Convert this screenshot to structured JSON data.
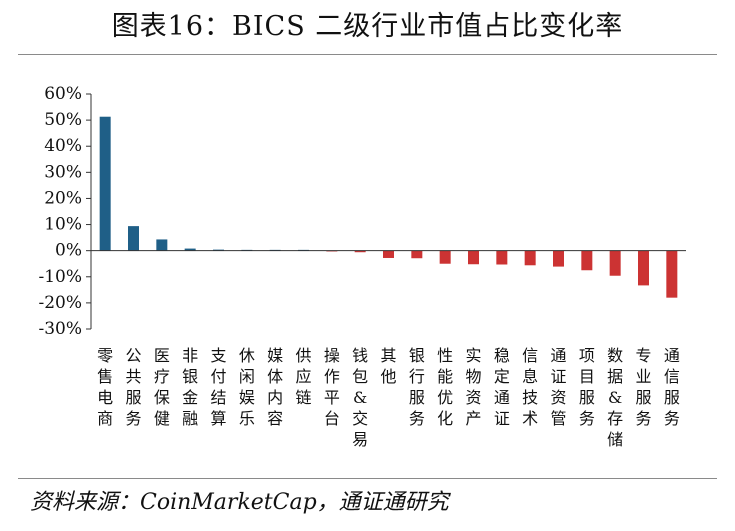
{
  "title": "图表16：BICS 二级行业市值占比变化率",
  "source": "资料来源：CoinMarketCap，通证通研究",
  "colors": {
    "positive": "#1f5f87",
    "negative": "#cc3333",
    "axis": "#333333"
  },
  "chart_data": {
    "type": "bar",
    "title": "图表16：BICS 二级行业市值占比变化率",
    "xlabel": "",
    "ylabel": "",
    "ylim": [
      -30,
      60
    ],
    "yticks": [
      "60%",
      "50%",
      "40%",
      "30%",
      "20%",
      "10%",
      "0%",
      "-10%",
      "-20%",
      "-30%"
    ],
    "ytick_values": [
      60,
      50,
      40,
      30,
      20,
      10,
      0,
      -10,
      -20,
      -30
    ],
    "grid": false,
    "categories": [
      "零售电商",
      "公共服务",
      "医疗保健",
      "非银金融",
      "支付结算",
      "休闲娱乐",
      "媒体内容",
      "供应链",
      "操作平台",
      "钱包&交易",
      "其他",
      "银行服务",
      "性能优化",
      "实物资产",
      "稳定通证",
      "信息技术",
      "通证资管",
      "项目服务",
      "数据&存储",
      "专业服务",
      "通信服务"
    ],
    "values": [
      51.3,
      9.4,
      4.3,
      0.8,
      0.4,
      0.2,
      0.2,
      0.0,
      -0.3,
      -0.6,
      -2.8,
      -2.9,
      -5.0,
      -5.2,
      -5.3,
      -5.6,
      -6.1,
      -7.5,
      -9.6,
      -13.3,
      -18.0
    ]
  }
}
